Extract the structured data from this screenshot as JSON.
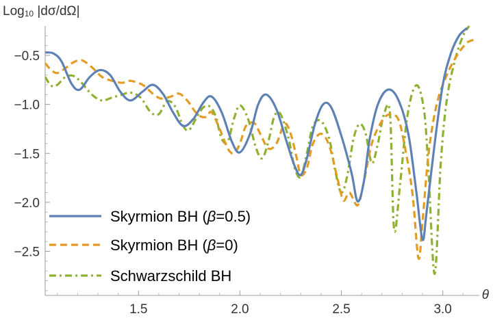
{
  "chart_data": {
    "type": "line",
    "title": "",
    "xlabel": "θ",
    "ylabel": "Log₁₀ |dσ/dΩ|",
    "ylabel_parts": {
      "log": "Log",
      "sub": "10",
      "rest": " |dσ/dΩ|"
    },
    "xlim": [
      1.04,
      3.18
    ],
    "ylim": [
      -2.95,
      -0.2
    ],
    "x_ticks": [
      1.5,
      2.0,
      2.5,
      3.0
    ],
    "x_tick_labels": [
      "1.5",
      "2.0",
      "2.5",
      "3.0"
    ],
    "y_ticks": [
      -0.5,
      -1.0,
      -1.5,
      -2.0,
      -2.5
    ],
    "y_tick_labels": [
      "−0.5",
      "−1.0",
      "−1.5",
      "−2.0",
      "−2.5"
    ],
    "grid": false,
    "legend_position": "lower-left",
    "series": [
      {
        "name": "Skyrmion BH (β=0.5)",
        "legend_prefix": "Skyrmion BH (",
        "legend_symbol": "β",
        "legend_suffix": "=0.5)",
        "color": "#5E81B5",
        "dash": "solid",
        "points": [
          [
            1.04,
            -0.47
          ],
          [
            1.08,
            -0.48
          ],
          [
            1.12,
            -0.56
          ],
          [
            1.17,
            -0.79
          ],
          [
            1.21,
            -0.85
          ],
          [
            1.26,
            -0.72
          ],
          [
            1.31,
            -0.65
          ],
          [
            1.36,
            -0.7
          ],
          [
            1.41,
            -0.87
          ],
          [
            1.46,
            -0.96
          ],
          [
            1.52,
            -0.87
          ],
          [
            1.57,
            -0.8
          ],
          [
            1.62,
            -0.89
          ],
          [
            1.67,
            -1.08
          ],
          [
            1.72,
            -1.22
          ],
          [
            1.77,
            -1.15
          ],
          [
            1.82,
            -0.98
          ],
          [
            1.86,
            -0.92
          ],
          [
            1.91,
            -1.08
          ],
          [
            1.96,
            -1.38
          ],
          [
            2.0,
            -1.49
          ],
          [
            2.05,
            -1.3
          ],
          [
            2.09,
            -1.0
          ],
          [
            2.13,
            -0.9
          ],
          [
            2.18,
            -1.05
          ],
          [
            2.23,
            -1.38
          ],
          [
            2.27,
            -1.63
          ],
          [
            2.3,
            -1.72
          ],
          [
            2.33,
            -1.55
          ],
          [
            2.37,
            -1.2
          ],
          [
            2.41,
            -1.0
          ],
          [
            2.45,
            -1.03
          ],
          [
            2.5,
            -1.32
          ],
          [
            2.55,
            -1.7
          ],
          [
            2.58,
            -1.99
          ],
          [
            2.61,
            -1.8
          ],
          [
            2.64,
            -1.35
          ],
          [
            2.68,
            -1.0
          ],
          [
            2.73,
            -0.85
          ],
          [
            2.78,
            -0.95
          ],
          [
            2.83,
            -1.3
          ],
          [
            2.87,
            -1.9
          ],
          [
            2.9,
            -2.38
          ],
          [
            2.92,
            -2.1
          ],
          [
            2.96,
            -1.4
          ],
          [
            3.0,
            -0.8
          ],
          [
            3.04,
            -0.48
          ],
          [
            3.08,
            -0.3
          ],
          [
            3.12,
            -0.22
          ]
        ]
      },
      {
        "name": "Skyrmion BH (β=0)",
        "legend_prefix": "Skyrmion BH (",
        "legend_symbol": "β",
        "legend_suffix": "=0)",
        "color": "#E19C24",
        "dash": "dashed",
        "points": [
          [
            1.04,
            -0.58
          ],
          [
            1.07,
            -0.65
          ],
          [
            1.1,
            -0.68
          ],
          [
            1.14,
            -0.63
          ],
          [
            1.18,
            -0.57
          ],
          [
            1.22,
            -0.55
          ],
          [
            1.27,
            -0.62
          ],
          [
            1.32,
            -0.72
          ],
          [
            1.37,
            -0.76
          ],
          [
            1.42,
            -0.78
          ],
          [
            1.46,
            -0.76
          ],
          [
            1.52,
            -0.8
          ],
          [
            1.57,
            -0.89
          ],
          [
            1.61,
            -0.94
          ],
          [
            1.66,
            -0.92
          ],
          [
            1.7,
            -0.89
          ],
          [
            1.74,
            -0.96
          ],
          [
            1.79,
            -1.1
          ],
          [
            1.83,
            -1.13
          ],
          [
            1.86,
            -1.08
          ],
          [
            1.9,
            -1.25
          ],
          [
            1.94,
            -1.45
          ],
          [
            1.97,
            -1.5
          ],
          [
            2.0,
            -1.4
          ],
          [
            2.03,
            -1.22
          ],
          [
            2.07,
            -1.19
          ],
          [
            2.1,
            -1.3
          ],
          [
            2.14,
            -1.45
          ],
          [
            2.18,
            -1.4
          ],
          [
            2.22,
            -1.2
          ],
          [
            2.25,
            -1.3
          ],
          [
            2.28,
            -1.55
          ],
          [
            2.3,
            -1.72
          ],
          [
            2.33,
            -1.65
          ],
          [
            2.36,
            -1.4
          ],
          [
            2.4,
            -1.3
          ],
          [
            2.44,
            -1.42
          ],
          [
            2.48,
            -1.75
          ],
          [
            2.51,
            -1.98
          ],
          [
            2.54,
            -1.9
          ],
          [
            2.58,
            -2.03
          ],
          [
            2.61,
            -1.8
          ],
          [
            2.65,
            -1.4
          ],
          [
            2.7,
            -1.17
          ],
          [
            2.74,
            -1.1
          ],
          [
            2.78,
            -1.15
          ],
          [
            2.81,
            -1.4
          ],
          [
            2.85,
            -1.9
          ],
          [
            2.88,
            -2.57
          ],
          [
            2.9,
            -2.2
          ],
          [
            2.93,
            -1.5
          ],
          [
            2.97,
            -1.0
          ],
          [
            3.02,
            -0.7
          ],
          [
            3.07,
            -0.5
          ],
          [
            3.12,
            -0.37
          ],
          [
            3.16,
            -0.34
          ]
        ]
      },
      {
        "name": "Schwarzschild BH",
        "legend_prefix": "Schwarzschild BH",
        "legend_symbol": "",
        "legend_suffix": "",
        "color": "#8FB131",
        "dash": "dashdot",
        "points": [
          [
            1.04,
            -0.72
          ],
          [
            1.07,
            -0.81
          ],
          [
            1.1,
            -0.8
          ],
          [
            1.14,
            -0.72
          ],
          [
            1.18,
            -0.71
          ],
          [
            1.22,
            -0.78
          ],
          [
            1.27,
            -0.9
          ],
          [
            1.32,
            -0.96
          ],
          [
            1.37,
            -0.93
          ],
          [
            1.42,
            -0.9
          ],
          [
            1.46,
            -0.88
          ],
          [
            1.51,
            -0.93
          ],
          [
            1.56,
            -1.08
          ],
          [
            1.6,
            -1.1
          ],
          [
            1.64,
            -0.97
          ],
          [
            1.68,
            -1.02
          ],
          [
            1.72,
            -1.22
          ],
          [
            1.75,
            -1.26
          ],
          [
            1.79,
            -1.12
          ],
          [
            1.82,
            -1.03
          ],
          [
            1.85,
            -1.02
          ],
          [
            1.88,
            -1.12
          ],
          [
            1.91,
            -1.35
          ],
          [
            1.94,
            -1.38
          ],
          [
            1.97,
            -1.15
          ],
          [
            2.0,
            -1.01
          ],
          [
            2.04,
            -1.15
          ],
          [
            2.08,
            -1.45
          ],
          [
            2.11,
            -1.55
          ],
          [
            2.14,
            -1.38
          ],
          [
            2.17,
            -1.12
          ],
          [
            2.2,
            -1.1
          ],
          [
            2.24,
            -1.35
          ],
          [
            2.27,
            -1.65
          ],
          [
            2.3,
            -1.74
          ],
          [
            2.33,
            -1.5
          ],
          [
            2.36,
            -1.22
          ],
          [
            2.4,
            -1.17
          ],
          [
            2.44,
            -1.35
          ],
          [
            2.47,
            -1.68
          ],
          [
            2.5,
            -1.9
          ],
          [
            2.53,
            -1.72
          ],
          [
            2.56,
            -1.35
          ],
          [
            2.59,
            -1.2
          ],
          [
            2.62,
            -1.3
          ],
          [
            2.65,
            -1.6
          ],
          [
            2.68,
            -1.4
          ],
          [
            2.71,
            -1.1
          ],
          [
            2.74,
            -1.1
          ],
          [
            2.76,
            -2.28
          ],
          [
            2.79,
            -1.8
          ],
          [
            2.82,
            -1.2
          ],
          [
            2.85,
            -0.88
          ],
          [
            2.88,
            -0.82
          ],
          [
            2.91,
            -1.1
          ],
          [
            2.93,
            -1.7
          ],
          [
            2.96,
            -2.73
          ],
          [
            2.99,
            -1.6
          ],
          [
            3.02,
            -0.95
          ],
          [
            3.06,
            -0.55
          ],
          [
            3.1,
            -0.3
          ],
          [
            3.13,
            -0.2
          ]
        ]
      }
    ]
  }
}
